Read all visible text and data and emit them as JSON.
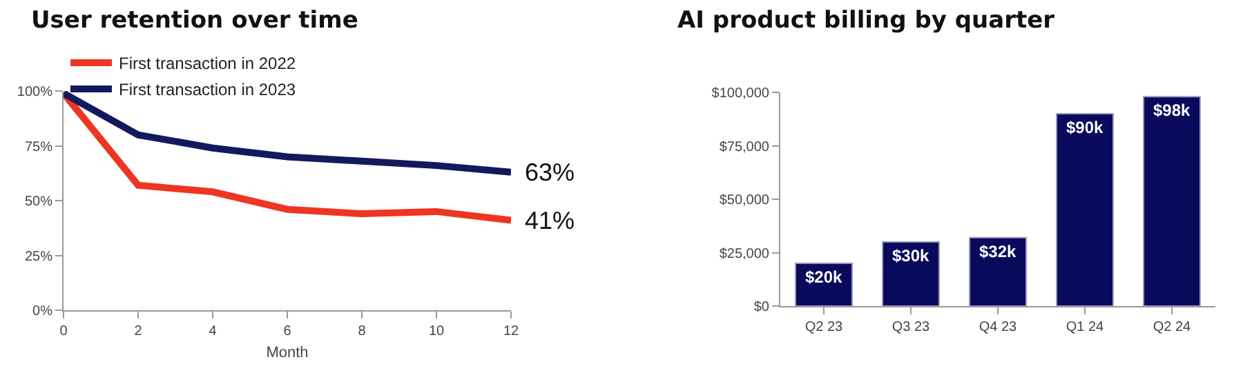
{
  "chart_data": [
    {
      "type": "line",
      "title": "User retention over time",
      "xlabel": "Month",
      "x": [
        0,
        2,
        4,
        6,
        8,
        10,
        12
      ],
      "series": [
        {
          "name": "First transaction in 2022",
          "color": "#ee3524",
          "values": [
            99,
            57,
            54,
            46,
            44,
            45,
            41
          ]
        },
        {
          "name": "First transaction in 2023",
          "color": "#121a5c",
          "values": [
            99,
            80,
            74,
            70,
            68,
            66,
            63
          ]
        }
      ],
      "xlim": [
        0,
        12
      ],
      "xticks": [
        0,
        2,
        4,
        6,
        8,
        10,
        12
      ],
      "ylim": [
        0,
        100
      ],
      "yticks": [
        {
          "value": 0,
          "label": "0%"
        },
        {
          "value": 25,
          "label": "25%"
        },
        {
          "value": 50,
          "label": "50%"
        },
        {
          "value": 75,
          "label": "75%"
        },
        {
          "value": 100,
          "label": "100%"
        }
      ],
      "annotations": [
        {
          "text": "63%",
          "x": 12,
          "y": 63
        },
        {
          "text": "41%",
          "x": 12,
          "y": 41
        }
      ],
      "legend": "top",
      "grid": false,
      "marker": "none",
      "line_style": "solid"
    },
    {
      "type": "bar",
      "title": "AI product billing by quarter",
      "categories": [
        "Q2 23",
        "Q3 23",
        "Q4 23",
        "Q1 24",
        "Q2 24"
      ],
      "values": [
        20000,
        30000,
        32000,
        90000,
        98000
      ],
      "color": "#0a0a5c",
      "value_labels": [
        "$20k",
        "$30k",
        "$32k",
        "$90k",
        "$98k"
      ],
      "ylim": [
        0,
        100000
      ],
      "yticks": [
        {
          "value": 0,
          "label": "$0"
        },
        {
          "value": 25000,
          "label": "$25,000"
        },
        {
          "value": 50000,
          "label": "$50,000"
        },
        {
          "value": 75000,
          "label": "$75,000"
        },
        {
          "value": 100000,
          "label": "$100,000"
        }
      ],
      "grid": false,
      "legend": false
    }
  ]
}
